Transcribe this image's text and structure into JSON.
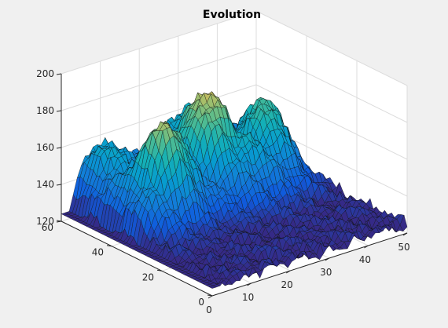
{
  "chart_data": {
    "type": "surface",
    "title": "Evolution",
    "xlabel": "",
    "ylabel": "",
    "zlabel": "",
    "xlim": [
      0,
      50
    ],
    "ylim": [
      0,
      60
    ],
    "zlim": [
      120,
      200
    ],
    "x_ticks": [
      0,
      10,
      20,
      30,
      40,
      50
    ],
    "y_ticks": [
      0,
      20,
      40,
      60
    ],
    "z_ticks": [
      120,
      140,
      160,
      180,
      200
    ],
    "grid": true,
    "colormap": "parula",
    "grid_size": [
      50,
      50
    ],
    "surface_description_peaks": [
      {
        "x": 12,
        "y": 36,
        "z": 185
      },
      {
        "x": 26,
        "y": 42,
        "z": 182
      },
      {
        "x": 40,
        "y": 40,
        "z": 170
      }
    ],
    "base_level": 125
  },
  "colors": {
    "figure_background": "#f0f0f0",
    "axes_background": "#ffffff",
    "grid": "#dcdcdc",
    "axis": "#262626"
  }
}
